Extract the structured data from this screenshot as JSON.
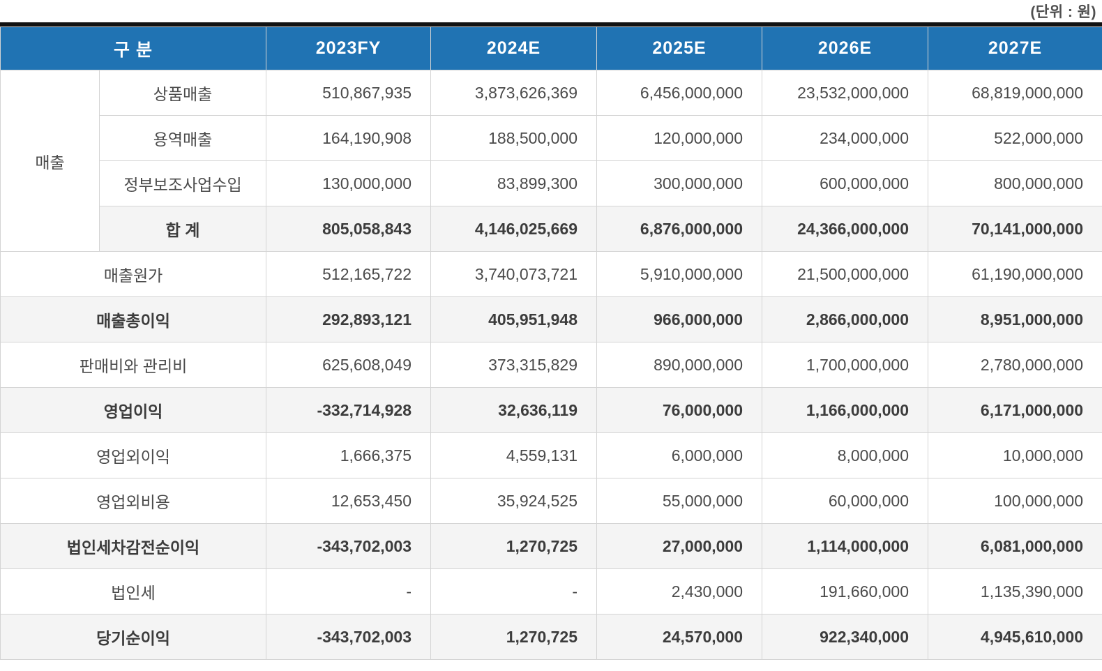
{
  "unit_label": "(단위 : 원)",
  "colors": {
    "header_bg": "#2073B3",
    "header_text": "#ffffff",
    "highlight_bg": "#f4f4f4",
    "border": "#d4d4d4",
    "text": "#4a4a4a",
    "top_bar": "#111111"
  },
  "table": {
    "header": {
      "label": "구 분",
      "columns": [
        "2023FY",
        "2024E",
        "2025E",
        "2026E",
        "2027E"
      ]
    },
    "revenue_group_label": "매출",
    "rows": [
      {
        "label": "상품매출",
        "bold": false,
        "values": [
          "510,867,935",
          "3,873,626,369",
          "6,456,000,000",
          "23,532,000,000",
          "68,819,000,000"
        ]
      },
      {
        "label": "용역매출",
        "bold": false,
        "values": [
          "164,190,908",
          "188,500,000",
          "120,000,000",
          "234,000,000",
          "522,000,000"
        ]
      },
      {
        "label": "정부보조사업수입",
        "bold": false,
        "values": [
          "130,000,000",
          "83,899,300",
          "300,000,000",
          "600,000,000",
          "800,000,000"
        ]
      },
      {
        "label": "합 계",
        "bold": true,
        "values": [
          "805,058,843",
          "4,146,025,669",
          "6,876,000,000",
          "24,366,000,000",
          "70,141,000,000"
        ]
      },
      {
        "label": "매출원가",
        "bold": false,
        "values": [
          "512,165,722",
          "3,740,073,721",
          "5,910,000,000",
          "21,500,000,000",
          "61,190,000,000"
        ]
      },
      {
        "label": "매출총이익",
        "bold": true,
        "values": [
          "292,893,121",
          "405,951,948",
          "966,000,000",
          "2,866,000,000",
          "8,951,000,000"
        ]
      },
      {
        "label": "판매비와 관리비",
        "bold": false,
        "values": [
          "625,608,049",
          "373,315,829",
          "890,000,000",
          "1,700,000,000",
          "2,780,000,000"
        ]
      },
      {
        "label": "영업이익",
        "bold": true,
        "values": [
          "-332,714,928",
          "32,636,119",
          "76,000,000",
          "1,166,000,000",
          "6,171,000,000"
        ]
      },
      {
        "label": "영업외이익",
        "bold": false,
        "values": [
          "1,666,375",
          "4,559,131",
          "6,000,000",
          "8,000,000",
          "10,000,000"
        ]
      },
      {
        "label": "영업외비용",
        "bold": false,
        "values": [
          "12,653,450",
          "35,924,525",
          "55,000,000",
          "60,000,000",
          "100,000,000"
        ]
      },
      {
        "label": "법인세차감전순이익",
        "bold": true,
        "values": [
          "-343,702,003",
          "1,270,725",
          "27,000,000",
          "1,114,000,000",
          "6,081,000,000"
        ]
      },
      {
        "label": "법인세",
        "bold": false,
        "values": [
          "-",
          "-",
          "2,430,000",
          "191,660,000",
          "1,135,390,000"
        ]
      },
      {
        "label": "당기순이익",
        "bold": true,
        "values": [
          "-343,702,003",
          "1,270,725",
          "24,570,000",
          "922,340,000",
          "4,945,610,000"
        ]
      }
    ]
  }
}
